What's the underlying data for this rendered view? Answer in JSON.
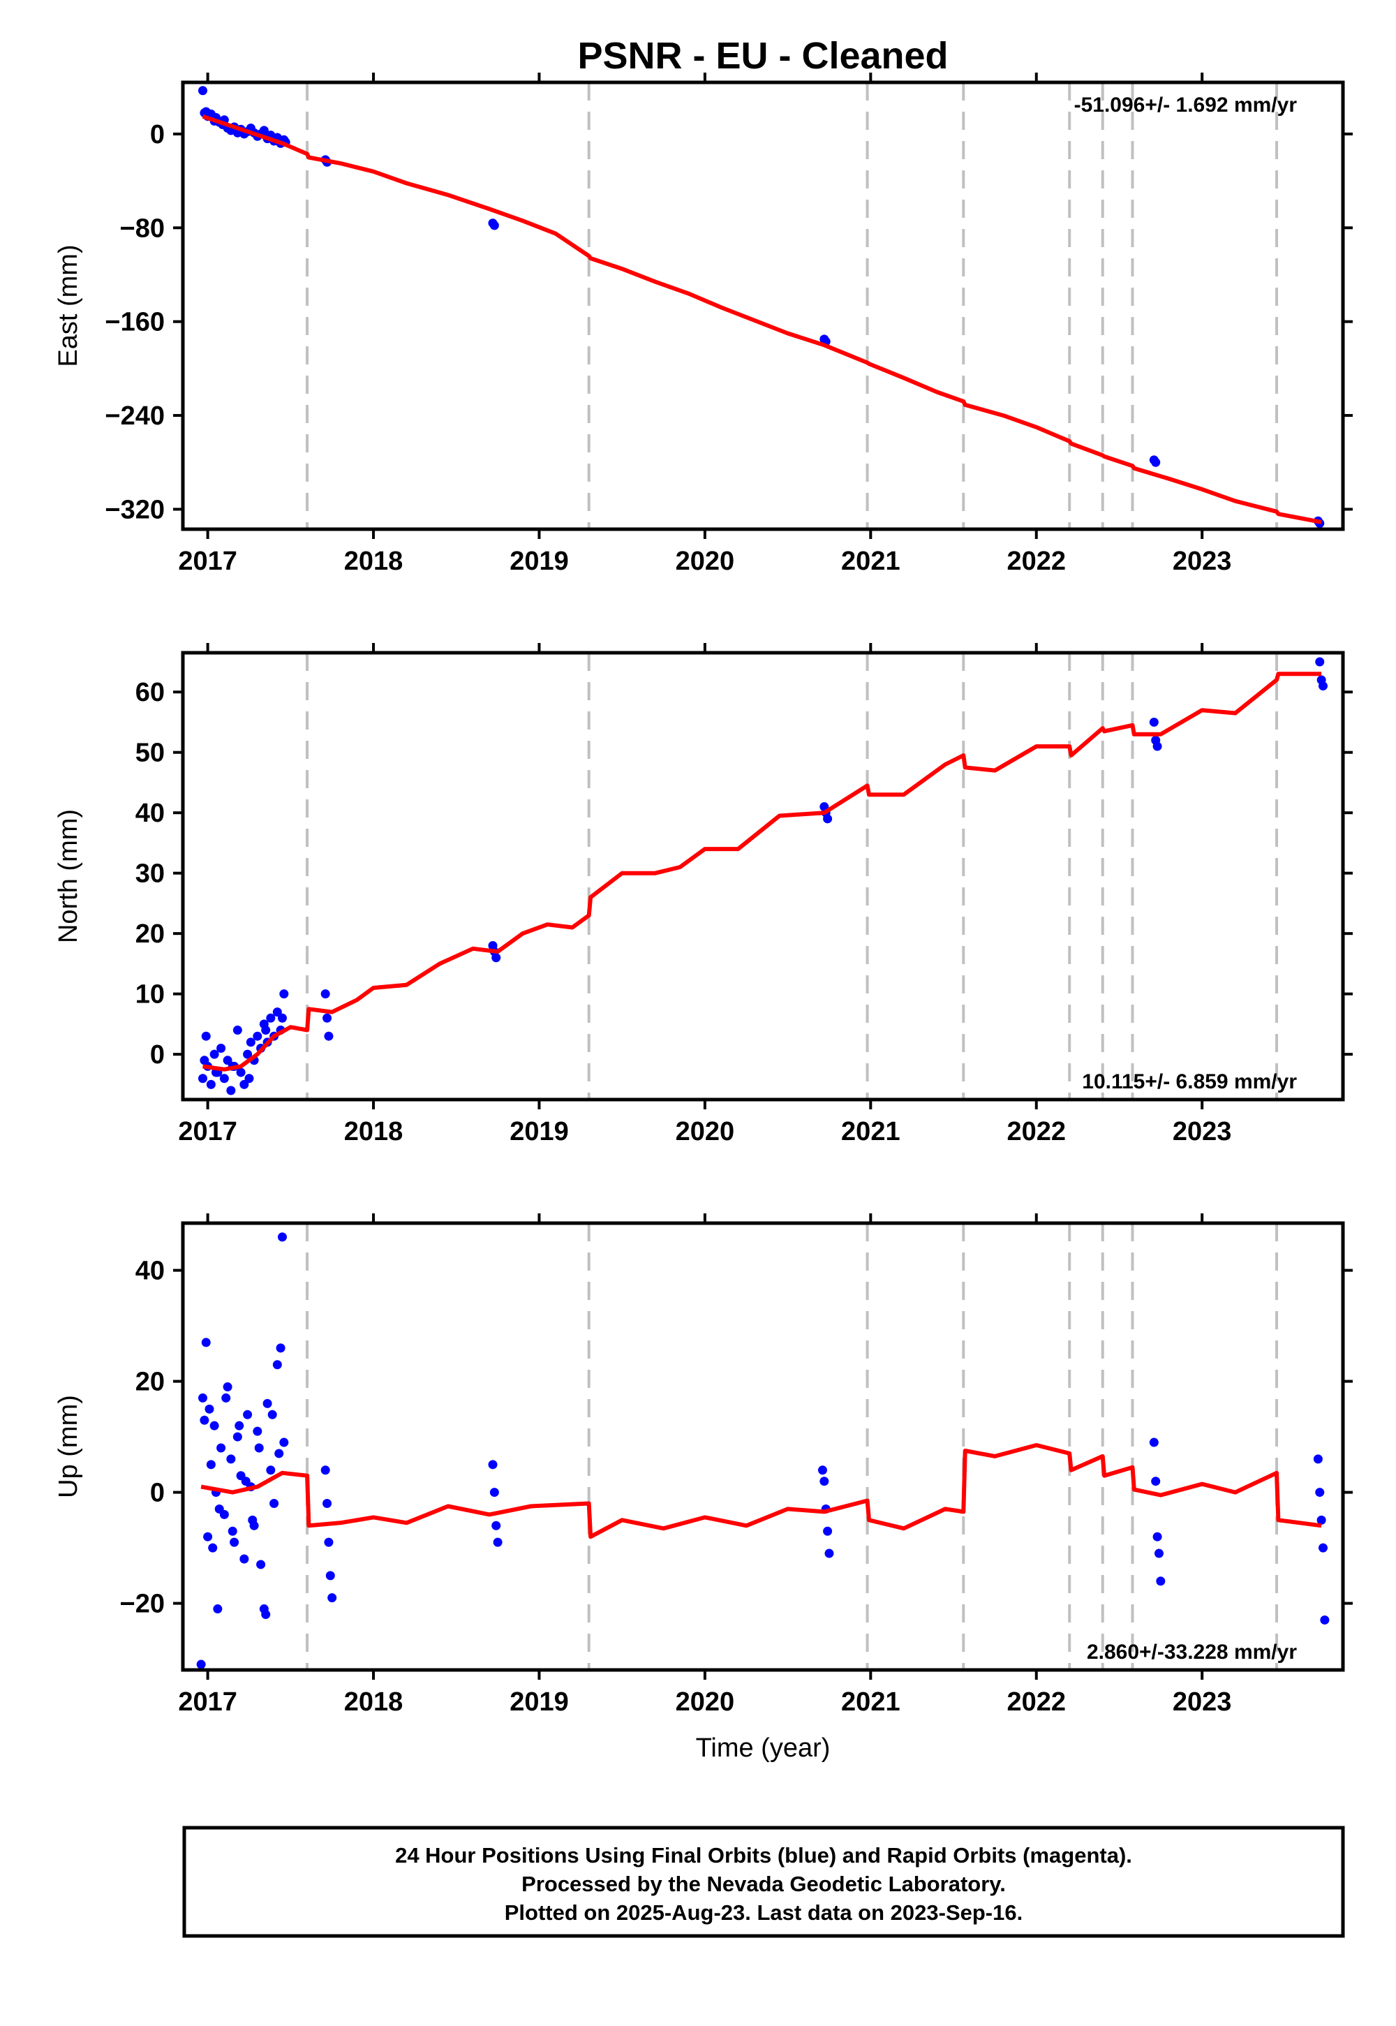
{
  "title": "PSNR  - EU - Cleaned",
  "footer": {
    "lines": [
      "24 Hour Positions Using Final Orbits (blue) and Rapid Orbits (magenta).",
      "Processed by the Nevada Geodetic Laboratory.",
      "Plotted on 2025-Aug-23. Last data on 2023-Sep-16."
    ]
  },
  "colors": {
    "data_points": "#0000ff",
    "model_line": "#ff0000",
    "event_lines": "#c0c0c0",
    "frame": "#000000"
  },
  "chart_data": [
    {
      "type": "scatter",
      "panel": "east",
      "xlabel": "",
      "ylabel": "East (mm)",
      "xlim": [
        2016.85,
        2023.85
      ],
      "ylim": [
        -337,
        44
      ],
      "xticks": [
        2017,
        2018,
        2019,
        2020,
        2021,
        2022,
        2023
      ],
      "xtick_labels": [
        "2017",
        "2018",
        "2019",
        "2020",
        "2021",
        "2022",
        "2023"
      ],
      "yticks": [
        0,
        -80,
        -160,
        -240,
        -320
      ],
      "ytick_labels": [
        "0",
        "−80",
        "−160",
        "−240",
        "−320"
      ],
      "rate_label": "-51.096+/- 1.692 mm/yr",
      "rate_position": "top-right",
      "event_lines_x": [
        2017.6,
        2019.3,
        2020.98,
        2021.56,
        2022.2,
        2022.4,
        2022.58,
        2023.45
      ],
      "points": {
        "x": [
          2016.97,
          2016.98,
          2016.99,
          2017.0,
          2017.02,
          2017.04,
          2017.05,
          2017.07,
          2017.09,
          2017.1,
          2017.12,
          2017.14,
          2017.16,
          2017.18,
          2017.2,
          2017.22,
          2017.24,
          2017.26,
          2017.28,
          2017.3,
          2017.32,
          2017.34,
          2017.36,
          2017.38,
          2017.4,
          2017.42,
          2017.44,
          2017.46,
          2017.47,
          2017.71,
          2017.72,
          2018.72,
          2018.73,
          2020.72,
          2020.73,
          2022.71,
          2022.72,
          2023.7,
          2023.71
        ],
        "y": [
          37,
          18,
          19,
          15,
          17,
          11,
          14,
          10,
          8,
          12,
          5,
          3,
          6,
          1,
          4,
          0,
          2,
          5,
          1,
          -2,
          0,
          3,
          -4,
          -1,
          -6,
          -3,
          -8,
          -5,
          -7,
          -22,
          -24,
          -76,
          -78,
          -175,
          -177,
          -278,
          -280,
          -330,
          -332
        ]
      },
      "model": {
        "x": [
          2016.97,
          2017.2,
          2017.45,
          2017.6,
          2017.61,
          2017.8,
          2018.0,
          2018.2,
          2018.45,
          2018.7,
          2018.9,
          2019.1,
          2019.3,
          2019.31,
          2019.5,
          2019.7,
          2019.9,
          2020.1,
          2020.3,
          2020.5,
          2020.72,
          2020.98,
          2020.99,
          2021.2,
          2021.4,
          2021.56,
          2021.57,
          2021.8,
          2022.0,
          2022.2,
          2022.21,
          2022.4,
          2022.41,
          2022.58,
          2022.59,
          2022.8,
          2023.0,
          2023.2,
          2023.45,
          2023.46,
          2023.72
        ],
        "y": [
          15,
          4,
          -8,
          -17,
          -20,
          -25,
          -32,
          -42,
          -52,
          -64,
          -74,
          -85,
          -104,
          -106,
          -115,
          -126,
          -136,
          -148,
          -159,
          -170,
          -180,
          -195,
          -196,
          -208,
          -220,
          -228,
          -231,
          -240,
          -250,
          -262,
          -264,
          -274,
          -275,
          -283,
          -285,
          -294,
          -303,
          -313,
          -322,
          -324,
          -331
        ]
      }
    },
    {
      "type": "scatter",
      "panel": "north",
      "xlabel": "",
      "ylabel": "North (mm)",
      "xlim": [
        2016.85,
        2023.85
      ],
      "ylim": [
        -7.5,
        66.5
      ],
      "xticks": [
        2017,
        2018,
        2019,
        2020,
        2021,
        2022,
        2023
      ],
      "xtick_labels": [
        "2017",
        "2018",
        "2019",
        "2020",
        "2021",
        "2022",
        "2023"
      ],
      "yticks": [
        0,
        10,
        20,
        30,
        40,
        50,
        60
      ],
      "ytick_labels": [
        "0",
        "10",
        "20",
        "30",
        "40",
        "50",
        "60"
      ],
      "rate_label": "10.115+/- 6.859 mm/yr",
      "rate_position": "bottom-right",
      "event_lines_x": [
        2017.6,
        2019.3,
        2020.98,
        2021.56,
        2022.2,
        2022.4,
        2022.58,
        2023.45
      ],
      "points": {
        "x": [
          2016.97,
          2016.99,
          2017.0,
          2017.02,
          2017.04,
          2017.06,
          2017.08,
          2017.1,
          2017.12,
          2017.14,
          2017.16,
          2017.18,
          2017.2,
          2017.22,
          2017.24,
          2017.26,
          2017.28,
          2017.3,
          2017.32,
          2017.34,
          2017.36,
          2017.38,
          2017.4,
          2017.42,
          2017.44,
          2017.46,
          2016.98,
          2017.05,
          2017.15,
          2017.25,
          2017.35,
          2017.45,
          2017.71,
          2017.72,
          2017.73,
          2018.72,
          2018.73,
          2018.74,
          2020.72,
          2020.73,
          2020.74,
          2022.71,
          2022.72,
          2022.73,
          2023.71,
          2023.72,
          2023.73
        ],
        "y": [
          -4,
          3,
          -2,
          -5,
          0,
          -3,
          1,
          -4,
          -1,
          -6,
          -2,
          4,
          -3,
          -5,
          0,
          2,
          -1,
          3,
          1,
          5,
          2,
          6,
          3,
          7,
          4,
          10,
          -1,
          -3,
          -2,
          -4,
          4,
          6,
          10,
          6,
          3,
          18,
          17,
          16,
          41,
          40,
          39,
          55,
          52,
          51,
          65,
          62,
          61
        ]
      },
      "model": {
        "x": [
          2016.97,
          2017.1,
          2017.2,
          2017.3,
          2017.4,
          2017.5,
          2017.6,
          2017.61,
          2017.75,
          2017.9,
          2018.0,
          2018.2,
          2018.4,
          2018.6,
          2018.75,
          2018.9,
          2019.05,
          2019.2,
          2019.3,
          2019.31,
          2019.5,
          2019.7,
          2019.85,
          2020.0,
          2020.2,
          2020.45,
          2020.72,
          2020.98,
          2020.99,
          2021.2,
          2021.45,
          2021.56,
          2021.57,
          2021.75,
          2022.0,
          2022.2,
          2022.21,
          2022.4,
          2022.41,
          2022.58,
          2022.59,
          2022.75,
          2023.0,
          2023.2,
          2023.45,
          2023.46,
          2023.72
        ],
        "y": [
          -2,
          -2.5,
          -2,
          0,
          3,
          4.5,
          4,
          7.5,
          7,
          9,
          11,
          11.5,
          15,
          17.5,
          17,
          20,
          21.5,
          21,
          23,
          26,
          30,
          30,
          31,
          34,
          34,
          39.5,
          40,
          44.5,
          43,
          43,
          48,
          49.5,
          47.5,
          47,
          51,
          51,
          49.5,
          54,
          53.5,
          54.5,
          53,
          53,
          57,
          56.5,
          62,
          63,
          63
        ]
      }
    },
    {
      "type": "scatter",
      "panel": "up",
      "xlabel": "Time (year)",
      "ylabel": "Up (mm)",
      "xlim": [
        2016.85,
        2023.85
      ],
      "ylim": [
        -32,
        48.5
      ],
      "xticks": [
        2017,
        2018,
        2019,
        2020,
        2021,
        2022,
        2023
      ],
      "xtick_labels": [
        "2017",
        "2018",
        "2019",
        "2020",
        "2021",
        "2022",
        "2023"
      ],
      "yticks": [
        -20,
        0,
        20,
        40
      ],
      "ytick_labels": [
        "−20",
        "0",
        "20",
        "40"
      ],
      "rate_label": "2.860+/-33.228 mm/yr",
      "rate_position": "bottom-right",
      "event_lines_x": [
        2017.6,
        2019.3,
        2020.98,
        2021.56,
        2022.2,
        2022.4,
        2022.58,
        2023.45
      ],
      "points": {
        "x": [
          2016.96,
          2016.97,
          2016.98,
          2016.99,
          2017.0,
          2017.01,
          2017.02,
          2017.03,
          2017.04,
          2017.05,
          2017.06,
          2017.08,
          2017.1,
          2017.12,
          2017.14,
          2017.16,
          2017.18,
          2017.2,
          2017.22,
          2017.24,
          2017.26,
          2017.28,
          2017.3,
          2017.32,
          2017.34,
          2017.36,
          2017.38,
          2017.4,
          2017.42,
          2017.44,
          2017.45,
          2017.46,
          2017.07,
          2017.11,
          2017.15,
          2017.19,
          2017.23,
          2017.27,
          2017.31,
          2017.35,
          2017.39,
          2017.43,
          2017.71,
          2017.72,
          2017.73,
          2017.74,
          2017.75,
          2018.72,
          2018.73,
          2018.74,
          2018.75,
          2020.71,
          2020.72,
          2020.73,
          2020.74,
          2020.75,
          2022.71,
          2022.72,
          2022.73,
          2022.74,
          2022.75,
          2023.7,
          2023.71,
          2023.72,
          2023.73,
          2023.74
        ],
        "y": [
          -31,
          17,
          13,
          27,
          -8,
          15,
          5,
          -10,
          12,
          0,
          -21,
          8,
          -4,
          19,
          6,
          -9,
          10,
          3,
          -12,
          14,
          1,
          -6,
          11,
          -13,
          -21,
          16,
          4,
          -2,
          23,
          26,
          46,
          9,
          -3,
          17,
          -7,
          12,
          2,
          -5,
          8,
          -22,
          14,
          7,
          4,
          -2,
          -9,
          -15,
          -19,
          5,
          0,
          -6,
          -9,
          4,
          2,
          -3,
          -7,
          -11,
          9,
          2,
          -8,
          -11,
          -16,
          6,
          0,
          -5,
          -10,
          -23
        ]
      },
      "model": {
        "x": [
          2016.96,
          2017.15,
          2017.3,
          2017.45,
          2017.6,
          2017.61,
          2017.8,
          2018.0,
          2018.2,
          2018.45,
          2018.7,
          2018.95,
          2019.3,
          2019.31,
          2019.5,
          2019.75,
          2020.0,
          2020.25,
          2020.5,
          2020.72,
          2020.98,
          2020.99,
          2021.2,
          2021.45,
          2021.56,
          2021.57,
          2021.75,
          2022.0,
          2022.2,
          2022.21,
          2022.4,
          2022.41,
          2022.58,
          2022.59,
          2022.75,
          2023.0,
          2023.2,
          2023.45,
          2023.46,
          2023.72
        ],
        "y": [
          1,
          0,
          1,
          3.5,
          3,
          -6,
          -5.5,
          -4.5,
          -5.5,
          -2.5,
          -4,
          -2.5,
          -2,
          -8,
          -5,
          -6.5,
          -4.5,
          -6,
          -3,
          -3.5,
          -1.5,
          -5,
          -6.5,
          -3,
          -3.5,
          7.5,
          6.5,
          8.5,
          7,
          4,
          6.5,
          3,
          4.5,
          0.5,
          -0.5,
          1.5,
          0,
          3.5,
          -5,
          -6
        ]
      }
    }
  ]
}
